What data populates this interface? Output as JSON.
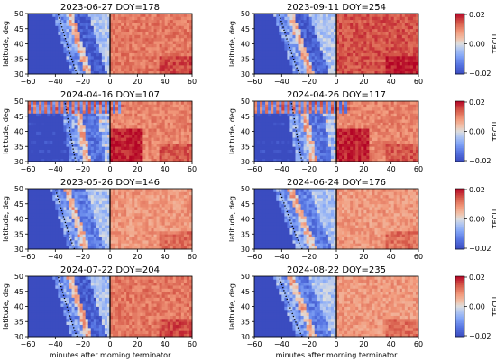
{
  "chart_data": {
    "type": "heatmap",
    "xlabel": "minutes after morning terminator",
    "ylabel": "latitude, deg",
    "xlim": [
      -60,
      60
    ],
    "ylim": [
      30,
      50
    ],
    "x_ticks": [
      -60,
      -40,
      -20,
      0,
      20,
      40,
      60
    ],
    "y_ticks": [
      30,
      35,
      40,
      45,
      50
    ],
    "colorbar": {
      "label": "TECU",
      "range": [
        -0.02,
        0.02
      ],
      "ticks": [
        "0.02",
        "0.00",
        "−0.02"
      ],
      "colormap": "coolwarm"
    },
    "colors": {
      "low": "#3b4cc0",
      "mid": "#dddddd",
      "high": "#b40426"
    },
    "reference_line": {
      "x": 0,
      "description": "morning terminator"
    },
    "panels": [
      {
        "title": "2023-06-27 DOY=178",
        "dotted_front": {
          "x_at_lat50": -38,
          "x_at_lat30": -24
        },
        "pattern": "strong"
      },
      {
        "title": "2023-09-11 DOY=254",
        "dotted_front": {
          "x_at_lat50": -42,
          "x_at_lat30": -27
        },
        "pattern": "very_strong"
      },
      {
        "title": "2024-04-16 DOY=107",
        "dotted_front": {
          "x_at_lat50": -33,
          "x_at_lat30": -25
        },
        "pattern": "stripes"
      },
      {
        "title": "2024-04-26 DOY=117",
        "dotted_front": {
          "x_at_lat50": -33,
          "x_at_lat30": -25
        },
        "pattern": "stripes"
      },
      {
        "title": "2023-05-26 DOY=146",
        "dotted_front": {
          "x_at_lat50": -40,
          "x_at_lat30": -26
        },
        "pattern": "weak"
      },
      {
        "title": "2024-06-24 DOY=176",
        "dotted_front": {
          "x_at_lat50": -42,
          "x_at_lat30": -25
        },
        "pattern": "weak"
      },
      {
        "title": "2024-07-22 DOY=204",
        "dotted_front": {
          "x_at_lat50": -38,
          "x_at_lat30": -24
        },
        "pattern": "strong"
      },
      {
        "title": "2024-08-22 DOY=235",
        "dotted_front": {
          "x_at_lat50": -42,
          "x_at_lat30": -25
        },
        "pattern": "weak"
      }
    ]
  }
}
